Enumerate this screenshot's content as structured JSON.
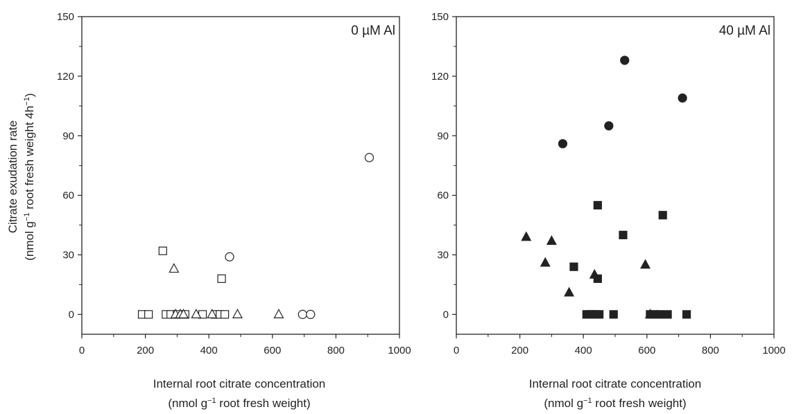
{
  "y_title": {
    "line1": "Citrate exudation rate",
    "line2_prefix": "(nmol g",
    "sup1": "−1",
    "line2_mid": " root fresh weight 4h",
    "sup2": "−1",
    "line2_suffix": ")"
  },
  "x_title": {
    "line1": "Internal root citrate concentration",
    "line2_prefix": "(nmol g",
    "sup": "−1",
    "line2_suffix": " root fresh weight)"
  },
  "chart_data": [
    {
      "type": "scatter",
      "panel_label": "0 µM Al",
      "xlim": [
        0,
        1000
      ],
      "ylim": [
        -10,
        150
      ],
      "xticks": [
        0,
        200,
        400,
        600,
        800,
        1000
      ],
      "yticks": [
        0,
        30,
        60,
        90,
        120,
        150
      ],
      "grid": false,
      "series": [
        {
          "marker": "open-square",
          "color": "#222222",
          "points": [
            [
              190,
              0
            ],
            [
              210,
              0
            ],
            [
              255,
              32
            ],
            [
              265,
              0
            ],
            [
              280,
              0
            ],
            [
              300,
              0
            ],
            [
              325,
              0
            ],
            [
              380,
              0
            ],
            [
              420,
              0
            ],
            [
              435,
              0
            ],
            [
              440,
              18
            ],
            [
              450,
              0
            ]
          ]
        },
        {
          "marker": "open-triangle",
          "color": "#222222",
          "points": [
            [
              290,
              23
            ],
            [
              295,
              0
            ],
            [
              310,
              0
            ],
            [
              320,
              0
            ],
            [
              360,
              0
            ],
            [
              410,
              0
            ],
            [
              490,
              0
            ],
            [
              620,
              0
            ]
          ]
        },
        {
          "marker": "open-circle",
          "color": "#222222",
          "points": [
            [
              465,
              29
            ],
            [
              695,
              0
            ],
            [
              720,
              0
            ],
            [
              905,
              79
            ]
          ]
        }
      ]
    },
    {
      "type": "scatter",
      "panel_label": "40 µM Al",
      "xlim": [
        0,
        1000
      ],
      "ylim": [
        -10,
        150
      ],
      "xticks": [
        0,
        200,
        400,
        600,
        800,
        1000
      ],
      "yticks": [
        0,
        30,
        60,
        90,
        120,
        150
      ],
      "grid": false,
      "series": [
        {
          "marker": "filled-triangle",
          "color": "#222222",
          "points": [
            [
              220,
              39
            ],
            [
              280,
              26
            ],
            [
              300,
              37
            ],
            [
              355,
              11
            ],
            [
              435,
              20
            ],
            [
              595,
              25
            ],
            [
              610,
              0
            ]
          ]
        },
        {
          "marker": "filled-square",
          "color": "#222222",
          "points": [
            [
              370,
              24
            ],
            [
              410,
              0
            ],
            [
              420,
              0
            ],
            [
              430,
              0
            ],
            [
              440,
              0
            ],
            [
              445,
              55
            ],
            [
              445,
              18
            ],
            [
              450,
              0
            ],
            [
              495,
              0
            ],
            [
              525,
              40
            ],
            [
              610,
              0
            ],
            [
              625,
              0
            ],
            [
              640,
              0
            ],
            [
              650,
              50
            ],
            [
              665,
              0
            ],
            [
              725,
              0
            ]
          ]
        },
        {
          "marker": "filled-circle",
          "color": "#222222",
          "points": [
            [
              335,
              86
            ],
            [
              480,
              95
            ],
            [
              530,
              128
            ],
            [
              712,
              109
            ]
          ]
        }
      ]
    }
  ]
}
